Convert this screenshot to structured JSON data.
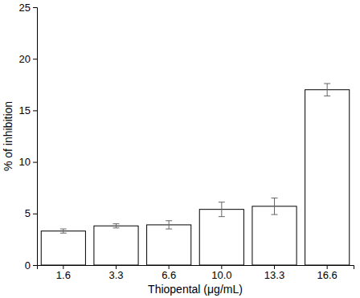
{
  "chart_data": {
    "type": "bar",
    "x_label": "Thiopental (μg/mL)",
    "y_label": "% of inhibition",
    "categories": [
      "1.6",
      "3.3",
      "6.6",
      "10.0",
      "13.3",
      "16.6"
    ],
    "values": [
      3.3,
      3.8,
      3.9,
      5.4,
      5.7,
      17.0
    ],
    "errors": [
      0.2,
      0.2,
      0.4,
      0.7,
      0.8,
      0.6
    ],
    "color": "#ffffff",
    "ylim": [
      0,
      25
    ],
    "yticks": [
      0,
      5,
      10,
      15,
      20,
      25
    ],
    "grid": false
  }
}
